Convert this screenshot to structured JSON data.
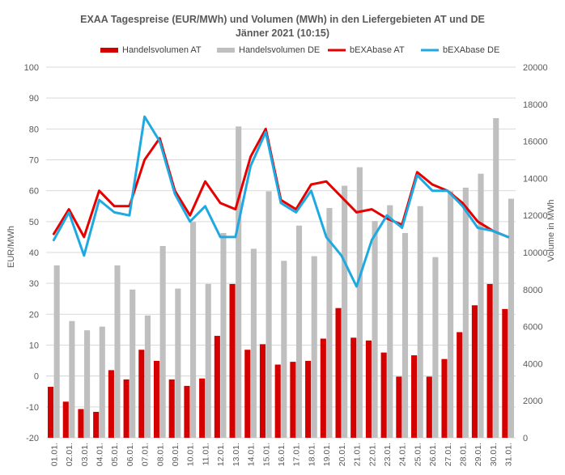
{
  "chart_data": {
    "type": "bar",
    "title_line1": "EXAA  Tagespreise (EUR/MWh)  und Volumen (MWh) in den Liefergebieten AT und DE",
    "title_line2": "Jänner 2021 (10:15)",
    "ylabel_left": "EUR/MWh",
    "ylabel_right": "Volume in MWh",
    "ylim_left": [
      -20,
      100
    ],
    "ylim_right": [
      0,
      20000
    ],
    "yticks_left": [
      "-20",
      "-10",
      "0",
      "10",
      "20",
      "30",
      "40",
      "50",
      "60",
      "70",
      "80",
      "90",
      "100"
    ],
    "yticks_right": [
      "0",
      "2000",
      "4000",
      "6000",
      "8000",
      "10000",
      "12000",
      "14000",
      "16000",
      "18000",
      "20000"
    ],
    "categories": [
      "01.01.",
      "02.01.",
      "03.01.",
      "04.01.",
      "05.01.",
      "06.01.",
      "07.01.",
      "08.01.",
      "09.01.",
      "10.01.",
      "11.01.",
      "12.01.",
      "13.01.",
      "14.01.",
      "15.01.",
      "16.01.",
      "17.01.",
      "18.01.",
      "19.01.",
      "20.01.",
      "21.01.",
      "22.01.",
      "23.01.",
      "24.01.",
      "25.01.",
      "26.01.",
      "27.01.",
      "28.01.",
      "29.01.",
      "30.01.",
      "31.01."
    ],
    "legend_position": "top",
    "series": [
      {
        "name": "Handelsvolumen AT",
        "kind": "bar",
        "axis": "right",
        "color": "#d40000",
        "values": [
          2750,
          1950,
          1550,
          1400,
          3650,
          3150,
          4750,
          4150,
          3150,
          2800,
          3200,
          5500,
          8300,
          4750,
          5050,
          3950,
          4100,
          4150,
          5350,
          7000,
          5400,
          5250,
          4600,
          3300,
          4450,
          3300,
          4250,
          5700,
          7150,
          8300,
          6950
        ]
      },
      {
        "name": "Handelsvolumen DE",
        "kind": "bar",
        "axis": "right",
        "color": "#bfbfbf",
        "values": [
          9300,
          6300,
          5800,
          6000,
          9300,
          8000,
          6600,
          10350,
          8050,
          11650,
          8300,
          11050,
          16800,
          10200,
          13300,
          9550,
          11450,
          9800,
          12400,
          13600,
          14600,
          11700,
          12550,
          11050,
          12500,
          9750,
          13300,
          13500,
          14250,
          17250,
          12900
        ]
      },
      {
        "name": "bEXAbase AT",
        "kind": "line",
        "axis": "left",
        "color": "#e60000",
        "values": [
          46,
          54,
          45,
          60,
          55,
          55,
          70,
          77,
          60,
          52,
          63,
          56,
          54,
          71,
          80,
          57,
          54,
          62,
          63,
          58,
          53,
          54,
          51,
          49,
          66,
          62,
          60,
          56,
          50,
          47,
          45
        ]
      },
      {
        "name": "bEXAbase DE",
        "kind": "line",
        "axis": "left",
        "color": "#1fa9e1",
        "values": [
          44,
          53,
          39,
          57,
          53,
          52,
          84,
          76,
          59,
          50,
          55,
          45,
          45,
          68,
          79,
          56,
          53,
          60,
          45,
          39,
          29,
          44,
          52,
          48,
          65,
          60,
          60,
          55,
          48,
          47,
          45
        ]
      }
    ]
  }
}
